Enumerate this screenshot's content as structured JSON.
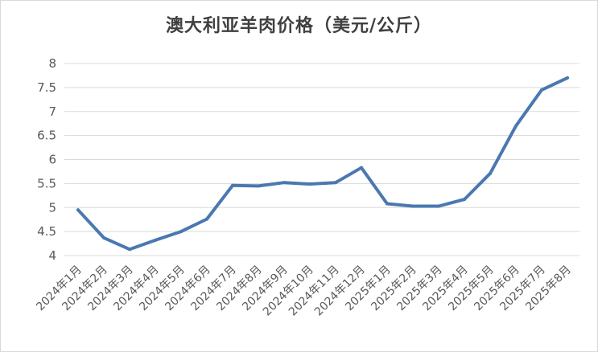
{
  "chart_data": {
    "type": "line",
    "title": "澳大利亚羊肉价格（美元/公斤）",
    "categories": [
      "2024年1月",
      "2024年2月",
      "2024年3月",
      "2024年4月",
      "2024年5月",
      "2024年6月",
      "2024年7月",
      "2024年8月",
      "2024年9月",
      "2024年10月",
      "2024年11月",
      "2024年12月",
      "2025年1月",
      "2025年2月",
      "2025年3月",
      "2025年4月",
      "2025年5月",
      "2025年6月",
      "2025年7月",
      "2025年8月"
    ],
    "values": [
      4.95,
      4.37,
      4.13,
      4.32,
      4.5,
      4.76,
      5.46,
      5.45,
      5.52,
      5.49,
      5.52,
      5.83,
      5.08,
      5.03,
      5.03,
      5.17,
      5.71,
      6.7,
      7.45,
      7.7
    ],
    "ylim": [
      4,
      8
    ],
    "yticks": [
      "4",
      "4.5",
      "5",
      "5.5",
      "6",
      "6.5",
      "7",
      "7.5",
      "8"
    ],
    "grid": true,
    "line_color": "#4a78b0",
    "grid_color": "#d9d9d9"
  }
}
